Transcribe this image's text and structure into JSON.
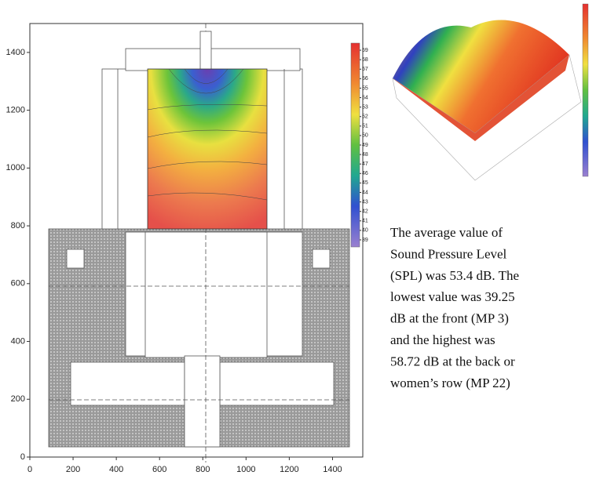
{
  "chart_data": {
    "type": "contour",
    "xlim": [
      0,
      1540
    ],
    "ylim": [
      0,
      1500
    ],
    "xticks": [
      0,
      200,
      400,
      600,
      800,
      1000,
      1200,
      1400
    ],
    "yticks": [
      0,
      200,
      400,
      600,
      800,
      1000,
      1200,
      1400
    ],
    "clim": [
      38.5,
      59.5
    ],
    "colorbar_ticks": [
      59,
      58,
      57,
      56,
      55,
      54,
      53,
      52,
      51,
      50,
      49,
      48,
      47,
      46,
      45,
      44,
      43,
      42,
      41,
      40,
      39
    ],
    "caption_lines": [
      "The average value of",
      "Sound Pressure Level",
      "(SPL) was 53.4 dB. The",
      "lowest value was 39.25",
      "dB at the front (MP 3)",
      "and the highest was",
      "58.72 dB at the back or",
      "women’s row (MP 22)"
    ]
  }
}
